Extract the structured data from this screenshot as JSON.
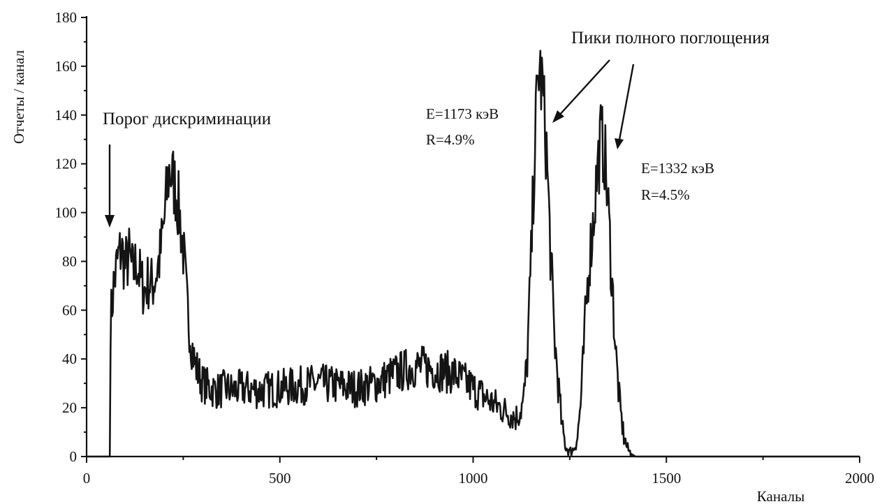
{
  "chart_data": {
    "type": "line",
    "title": "",
    "xlabel": "Каналы",
    "ylabel": "Отчеты / канал",
    "xlim": [
      0,
      2000
    ],
    "ylim": [
      0,
      180
    ],
    "x_ticks": [
      0,
      500,
      1000,
      1500,
      2000
    ],
    "y_ticks": [
      0,
      20,
      40,
      60,
      80,
      100,
      120,
      140,
      160,
      180
    ],
    "grid": false,
    "legend": "none",
    "series_color": "#141414",
    "series": [
      {
        "x": [
          0,
          60,
          62,
          70,
          80,
          90,
          100,
          110,
          120,
          130,
          140,
          150,
          160,
          170,
          180,
          190,
          200,
          210,
          215,
          220,
          230,
          240,
          250,
          260,
          270,
          280,
          290,
          300,
          320,
          340,
          360,
          380,
          400,
          450,
          500,
          550,
          600,
          650,
          700,
          750,
          800,
          850,
          900,
          950,
          1000,
          1050,
          1080,
          1100,
          1110,
          1120,
          1130,
          1140,
          1150,
          1160,
          1170,
          1180,
          1190,
          1200,
          1210,
          1220,
          1230,
          1240,
          1250,
          1260,
          1270,
          1280,
          1290,
          1300,
          1310,
          1320,
          1330,
          1340,
          1350,
          1360,
          1370,
          1380,
          1390,
          1400,
          1410,
          1420,
          1440,
          2000
        ],
        "y": [
          0,
          0,
          55,
          70,
          80,
          85,
          78,
          82,
          75,
          80,
          72,
          68,
          72,
          70,
          75,
          82,
          95,
          112,
          118,
          115,
          110,
          100,
          85,
          62,
          48,
          38,
          34,
          30,
          28,
          27,
          28,
          27,
          28,
          27,
          28,
          29,
          30,
          29,
          28,
          30,
          34,
          37,
          36,
          34,
          28,
          22,
          19,
          17,
          16,
          18,
          22,
          40,
          80,
          130,
          160,
          150,
          125,
          85,
          50,
          30,
          12,
          4,
          2,
          3,
          8,
          25,
          55,
          80,
          95,
          115,
          130,
          125,
          100,
          70,
          40,
          20,
          8,
          3,
          1,
          0,
          0,
          0
        ]
      }
    ],
    "annotations": {
      "threshold": "Порог дискриминации",
      "peaks": "Пики полного поглощения",
      "peak1_energy": "E=1173 кэВ",
      "peak1_resolution": "R=4.9%",
      "peak2_energy": "E=1332 кэВ",
      "peak2_resolution": "R=4.5%"
    }
  }
}
